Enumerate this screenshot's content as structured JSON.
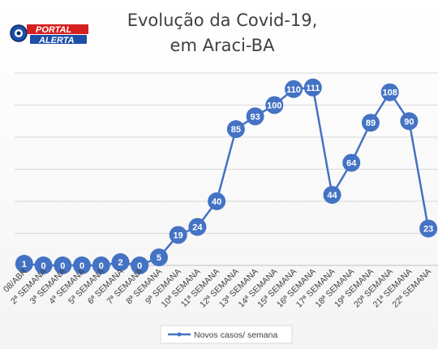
{
  "logo": {
    "word1": "PORTAL",
    "word2": "ALERTA",
    "red": "#d62020",
    "blue": "#1c4fa8"
  },
  "chart_data": {
    "type": "line",
    "title": [
      "Evolução da Covid-19,",
      "em Araci-BA"
    ],
    "categories": [
      "08/ABR",
      "2ª SEMANA",
      "3ª SEMANA",
      "4ª SEMANA",
      "5ª SEMANA",
      "6ª SEMANA",
      "7ª SEMANA",
      "8ª SEMANA",
      "9ª SEMANA",
      "10ª SEMANA",
      "11ª SEMANA",
      "12ª SEMANA",
      "13ª SEMANA",
      "14ª SEMANA",
      "15ª SEMANA",
      "16ª SEMANA",
      "17ª SEMANA",
      "18ª SEMANA",
      "19ª SEMANA",
      "20ª SEMANA",
      "21ª SEMANA",
      "22ª SEMANA"
    ],
    "series": [
      {
        "name": "Novos casos/ semana",
        "color": "#4472c4",
        "values": [
          1,
          0,
          0,
          0,
          0,
          2,
          0,
          5,
          19,
          24,
          40,
          85,
          93,
          100,
          110,
          111,
          44,
          64,
          89,
          108,
          90,
          23
        ]
      }
    ],
    "ylim": [
      0,
      120
    ],
    "gridlines": [
      20,
      40,
      60,
      80,
      100,
      120
    ],
    "grid": true,
    "legend_position": "bottom",
    "data_labels": true
  }
}
